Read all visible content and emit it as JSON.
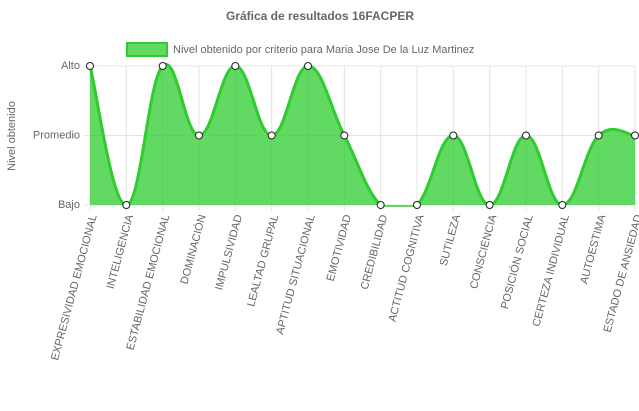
{
  "chart_data": {
    "type": "line",
    "title": "Gráfica de resultados 16FACPER",
    "y_label": "Nivel obtenido",
    "categories": [
      "EXPRESIVIDAD EMOCIONAL",
      "INTELIGENCIA",
      "ESTABILIDAD EMOCIONAL",
      "DOMINACIÓN",
      "IMPULSIVIDAD",
      "LEALTAD GRUPAL",
      "APTITUD SITUACIONAL",
      "EMOTIVIDAD",
      "CREDIBILIDAD",
      "ACTITUD COGNITIVA",
      "SUTILEZA",
      "CONSCIENCIA",
      "POSICIÓN SOCIAL",
      "CERTEZA INDIVIDUAL",
      "AUTOESTIMA",
      "ESTADO DE ANSIEDAD"
    ],
    "series": [
      {
        "name": "Nivel obtenido por criterio para Maria Jose De la Luz Martinez",
        "color": "#2ecc2e",
        "values": [
          2,
          0,
          2,
          1,
          2,
          1,
          2,
          1,
          0,
          0,
          1,
          0,
          1,
          0,
          1,
          1
        ]
      }
    ],
    "ylim": [
      0,
      2
    ],
    "yticks": [
      {
        "value": 0,
        "label": "Bajo"
      },
      {
        "value": 1,
        "label": "Promedio"
      },
      {
        "value": 2,
        "label": "Alto"
      }
    ],
    "grid": true,
    "fill": true,
    "legend": "top"
  }
}
